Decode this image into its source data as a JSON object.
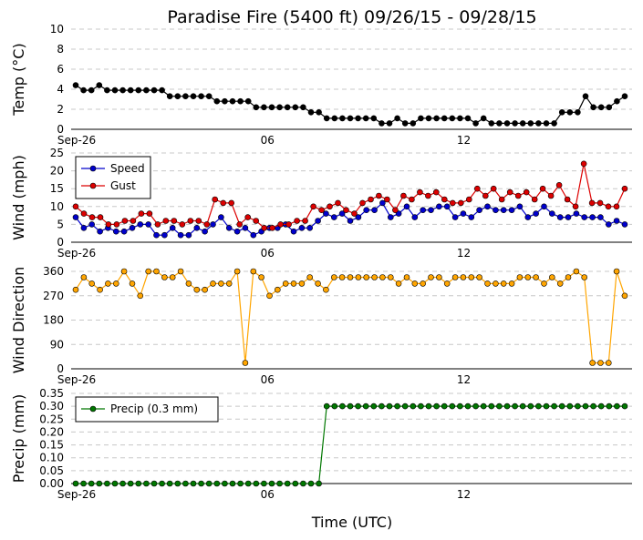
{
  "chart_data": {
    "title": "Paradise Fire (5400 ft) 09/26/15 - 09/28/15",
    "xlabel": "Time (UTC)",
    "x_tick_labels": [
      "Sep-26",
      "06",
      "12"
    ],
    "grid": true,
    "panels": [
      {
        "type": "line",
        "ylabel": "Temp (°C)",
        "ylim": [
          0,
          10
        ],
        "yticks": [
          0,
          2,
          4,
          6,
          8,
          10
        ],
        "legend": null,
        "series": [
          {
            "name": "Temp",
            "color": "#000000",
            "values": [
              4.4,
              3.9,
              3.9,
              4.4,
              3.9,
              3.9,
              3.9,
              3.9,
              3.9,
              3.9,
              3.9,
              3.9,
              3.3,
              3.3,
              3.3,
              3.3,
              3.3,
              3.3,
              2.8,
              2.8,
              2.8,
              2.8,
              2.8,
              2.2,
              2.2,
              2.2,
              2.2,
              2.2,
              2.2,
              2.2,
              1.7,
              1.7,
              1.1,
              1.1,
              1.1,
              1.1,
              1.1,
              1.1,
              1.1,
              0.6,
              0.6,
              1.1,
              0.6,
              0.6,
              1.1,
              1.1,
              1.1,
              1.1,
              1.1,
              1.1,
              1.1,
              0.6,
              1.1,
              0.6,
              0.6,
              0.6,
              0.6,
              0.6,
              0.6,
              0.6,
              0.6,
              0.6,
              1.7,
              1.7,
              1.7,
              3.3,
              2.2,
              2.2,
              2.2,
              2.8,
              3.3
            ]
          }
        ]
      },
      {
        "type": "line",
        "ylabel": "Wind (mph)",
        "ylim": [
          0,
          25
        ],
        "yticks": [
          0,
          5,
          10,
          15,
          20,
          25
        ],
        "legend": "top-left",
        "series": [
          {
            "name": "Speed",
            "color": "#0000cc",
            "values": [
              7,
              4,
              5,
              3,
              4,
              3,
              3,
              4,
              5,
              5,
              2,
              2,
              4,
              2,
              2,
              4,
              3,
              5,
              7,
              4,
              3,
              4,
              2,
              3,
              4,
              4,
              5,
              3,
              4,
              4,
              6,
              8,
              7,
              8,
              6,
              7,
              9,
              9,
              11,
              7,
              8,
              10,
              7,
              9,
              9,
              10,
              10,
              7,
              8,
              7,
              9,
              10,
              9,
              9,
              9,
              10,
              7,
              8,
              10,
              8,
              7,
              7,
              8,
              7,
              7,
              7,
              5,
              6,
              5
            ]
          },
          {
            "name": "Gust",
            "color": "#dd0000",
            "values": [
              10,
              8,
              7,
              7,
              5,
              5,
              6,
              6,
              8,
              8,
              5,
              6,
              6,
              5,
              6,
              6,
              5,
              12,
              11,
              11,
              5,
              7,
              6,
              4,
              4,
              5,
              5,
              6,
              6,
              10,
              9,
              10,
              11,
              9,
              8,
              11,
              12,
              13,
              12,
              9,
              13,
              12,
              14,
              13,
              14,
              12,
              11,
              11,
              12,
              15,
              13,
              15,
              12,
              14,
              13,
              14,
              12,
              15,
              13,
              16,
              12,
              10,
              22,
              11,
              11,
              10,
              10,
              15
            ]
          }
        ]
      },
      {
        "type": "line",
        "ylabel": "Wind Direction",
        "ylim": [
          0,
          360
        ],
        "yticks": [
          0,
          90,
          180,
          270,
          360
        ],
        "legend": null,
        "series": [
          {
            "name": "Direction",
            "color": "#ffa500",
            "values": [
              292,
              338,
              315,
              292,
              315,
              315,
              360,
              315,
              270,
              360,
              360,
              338,
              338,
              360,
              315,
              292,
              292,
              315,
              315,
              315,
              360,
              22,
              360,
              338,
              270,
              292,
              315,
              315,
              315,
              338,
              315,
              292,
              338,
              338,
              338,
              338,
              338,
              338,
              338,
              338,
              315,
              338,
              315,
              315,
              338,
              338,
              315,
              338,
              338,
              338,
              338,
              315,
              315,
              315,
              315,
              338,
              338,
              338,
              315,
              338,
              315,
              338,
              360,
              338,
              22,
              22,
              22,
              360,
              270
            ]
          }
        ]
      },
      {
        "type": "line",
        "ylabel": "Precip (mm)",
        "ylim": [
          0,
          0.35
        ],
        "yticks": [
          0.0,
          0.05,
          0.1,
          0.15,
          0.2,
          0.25,
          0.3,
          0.35
        ],
        "legend": "top-left",
        "series": [
          {
            "name": "Precip (0.3 mm)",
            "color": "#007700",
            "values": [
              0,
              0,
              0,
              0,
              0,
              0,
              0,
              0,
              0,
              0,
              0,
              0,
              0,
              0,
              0,
              0,
              0,
              0,
              0,
              0,
              0,
              0,
              0,
              0,
              0,
              0,
              0,
              0,
              0,
              0,
              0,
              0,
              0.3,
              0.3,
              0.3,
              0.3,
              0.3,
              0.3,
              0.3,
              0.3,
              0.3,
              0.3,
              0.3,
              0.3,
              0.3,
              0.3,
              0.3,
              0.3,
              0.3,
              0.3,
              0.3,
              0.3,
              0.3,
              0.3,
              0.3,
              0.3,
              0.3,
              0.3,
              0.3,
              0.3,
              0.3,
              0.3,
              0.3,
              0.3,
              0.3,
              0.3,
              0.3,
              0.3,
              0.3,
              0.3,
              0.3
            ]
          }
        ]
      }
    ]
  }
}
